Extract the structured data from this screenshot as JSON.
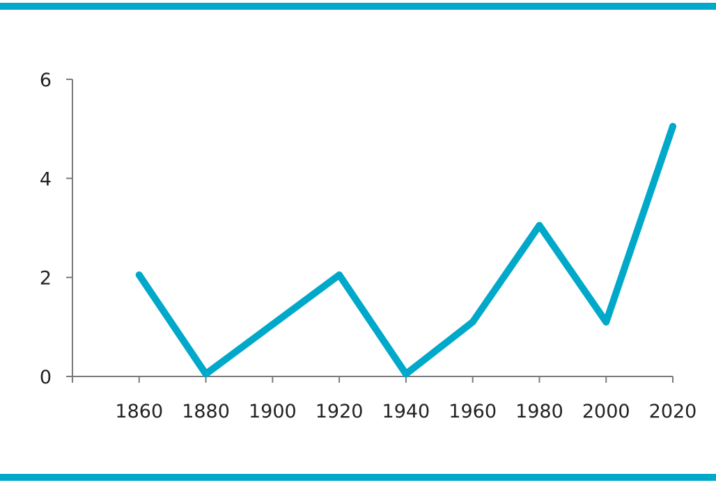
{
  "colors": {
    "accent": "#00a9c9",
    "axis": "#7a7a7a",
    "text": "#222222"
  },
  "chart_data": {
    "type": "line",
    "title": "",
    "xlabel": "",
    "ylabel": "",
    "x": [
      1870,
      1890,
      1910,
      1930,
      1950,
      1970,
      1990,
      2010,
      2030
    ],
    "series": [
      {
        "values": [
          2.05,
          0.05,
          1.05,
          2.05,
          0.05,
          1.1,
          3.05,
          1.1,
          5.05
        ]
      }
    ],
    "xlim": [
      1850,
      2030
    ],
    "ylim": [
      0,
      6
    ],
    "xticks": [
      1860,
      1880,
      1900,
      1920,
      1940,
      1960,
      1980,
      2000,
      2020
    ],
    "yticks": [
      0,
      2,
      4,
      6
    ],
    "grid": false,
    "legend": "none"
  }
}
